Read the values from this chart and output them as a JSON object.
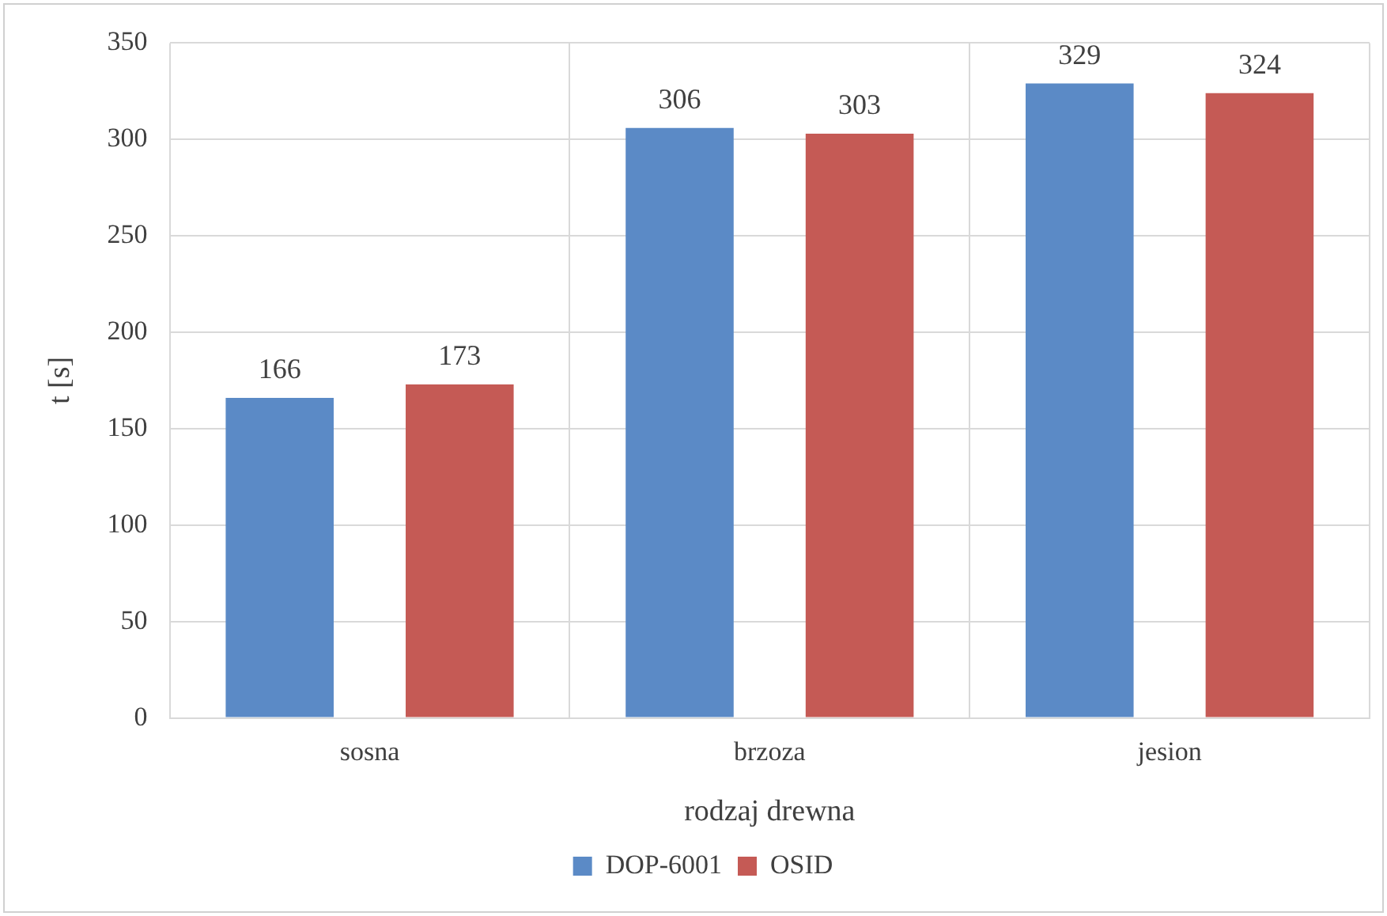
{
  "chart_data": {
    "type": "bar",
    "xlabel": "rodzaj drewna",
    "ylabel": "t [s]",
    "categories": [
      "sosna",
      "brzoza",
      "jesion"
    ],
    "series": [
      {
        "name": "DOP-6001",
        "color": "#5b8ac6",
        "values": [
          166,
          306,
          329
        ]
      },
      {
        "name": "OSID",
        "color": "#c55a55",
        "values": [
          173,
          303,
          324
        ]
      }
    ],
    "ylim": [
      0,
      350
    ],
    "yticks": [
      0,
      50,
      100,
      150,
      200,
      250,
      300,
      350
    ],
    "grid": true,
    "legend": "bottom",
    "data_labels": true
  }
}
